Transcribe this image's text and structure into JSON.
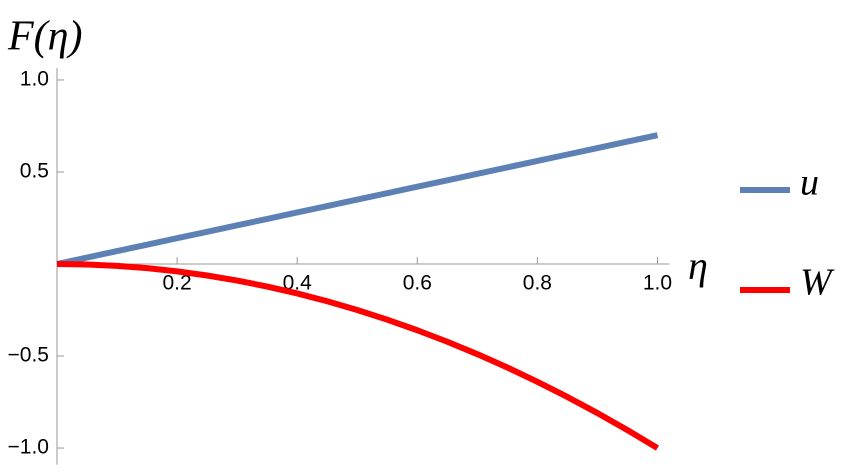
{
  "chart_data": {
    "type": "line",
    "y_label": "F(η)",
    "x_label": "η",
    "x": [
      0,
      0.05,
      0.1,
      0.15,
      0.2,
      0.25,
      0.3,
      0.35,
      0.4,
      0.45,
      0.5,
      0.55,
      0.6,
      0.65,
      0.7,
      0.75,
      0.8,
      0.85,
      0.9,
      0.95,
      1
    ],
    "series": [
      {
        "name": "u",
        "color": "#5e81b5",
        "values": [
          0,
          0.035,
          0.07,
          0.105,
          0.14,
          0.175,
          0.21,
          0.245,
          0.28,
          0.315,
          0.35,
          0.385,
          0.42,
          0.455,
          0.49,
          0.525,
          0.56,
          0.595,
          0.63,
          0.665,
          0.7
        ]
      },
      {
        "name": "W",
        "color": "#ff0000",
        "values": [
          0,
          -0.0025,
          -0.01,
          -0.0225,
          -0.04,
          -0.0625,
          -0.09,
          -0.1225,
          -0.16,
          -0.2025,
          -0.25,
          -0.3025,
          -0.36,
          -0.4225,
          -0.49,
          -0.5625,
          -0.64,
          -0.7225,
          -0.81,
          -0.9025,
          -1
        ]
      }
    ],
    "xlim": [
      0,
      1.02
    ],
    "ylim": [
      -1.09,
      1.065
    ],
    "xticks": [
      0.2,
      0.4,
      0.6,
      0.8,
      {
        "value": 1,
        "label": "1.0"
      }
    ],
    "yticks": [
      {
        "value": 1,
        "label": "1.0"
      },
      0.5,
      {
        "value": -0.5,
        "label": "−0.5"
      },
      {
        "value": -1,
        "label": "−1.0"
      }
    ],
    "legend": "right",
    "grid": false
  }
}
